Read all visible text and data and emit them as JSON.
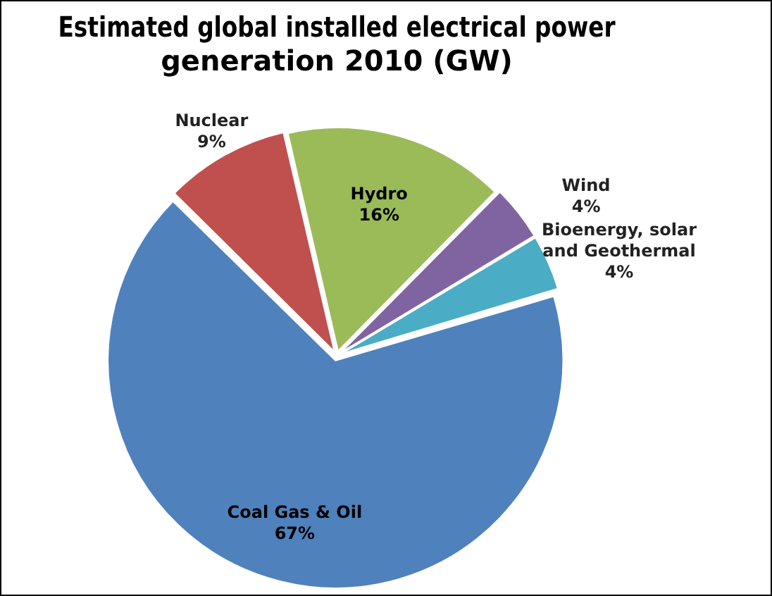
{
  "chart_data": {
    "type": "pie",
    "title": "Estimated global installed electrical power generation 2010 (GW)",
    "categories": [
      "Hydro",
      "Wind",
      "Bioenergy, solar and Geothermal",
      "Coal Gas & Oil",
      "Nuclear"
    ],
    "values": [
      16,
      4,
      4,
      67,
      9
    ],
    "colors": [
      "#9bbb59",
      "#8064a2",
      "#4bacc6",
      "#4f81bd",
      "#c0504d"
    ],
    "value_labels": [
      "16%",
      "4%",
      "4%",
      "67%",
      "9%"
    ],
    "legend": false
  }
}
